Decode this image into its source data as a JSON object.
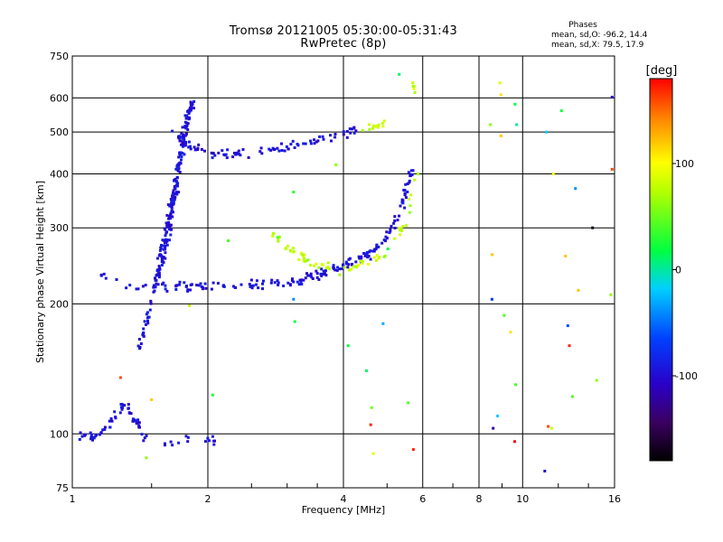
{
  "chart_data": {
    "type": "scatter",
    "title": "Tromsø 20121005 05:30:00-05:31:43",
    "subtitle": "RwPretec (8p)",
    "xlabel": "Frequency [MHz]",
    "ylabel": "Stationary phase Virtual Height [km]",
    "x_scale": "log",
    "y_scale": "log",
    "xlim": [
      1,
      16
    ],
    "ylim": [
      75,
      750
    ],
    "x_ticks": [
      1,
      2,
      4,
      6,
      8,
      10,
      16
    ],
    "x_tick_labels": [
      "1",
      "2",
      "4",
      "6",
      "8",
      "10",
      "16"
    ],
    "y_ticks": [
      75,
      100,
      200,
      300,
      400,
      500,
      600,
      750
    ],
    "y_tick_labels": [
      "75",
      "100",
      "200",
      "300",
      "400",
      "500",
      "600",
      "750"
    ],
    "grid": true,
    "phase_stats": {
      "title": "Phases",
      "o_line": "mean, sd,O: -96.2, 14.4",
      "x_line": "mean, sd,X:  79.5, 17.9"
    },
    "colorbar": {
      "label": "[deg]",
      "min": -180,
      "max": 180,
      "ticks": [
        100,
        0,
        -100
      ],
      "tick_labels": [
        "100",
        "0",
        "-100"
      ]
    },
    "series": [
      {
        "name": "O",
        "mean_phase": -96.2,
        "sd": 14.4,
        "traces": [
          {
            "x": [
              1.02,
              1.1,
              1.2,
              1.3,
              1.4,
              1.45
            ],
            "y": [
              100,
              98,
              103,
              118,
              106,
              96
            ],
            "count": 60
          },
          {
            "x": [
              1.42,
              1.48,
              1.55,
              1.62,
              1.68
            ],
            "y": [
              160,
              190,
              240,
              300,
              360
            ],
            "count": 90
          },
          {
            "x": [
              1.55,
              1.62,
              1.68,
              1.72,
              1.78,
              1.85
            ],
            "y": [
              230,
              280,
              340,
              420,
              500,
              600
            ],
            "count": 160
          },
          {
            "x": [
              1.65,
              1.75,
              1.85,
              2.0,
              2.2
            ],
            "y": [
              510,
              480,
              460,
              450,
              445
            ],
            "count": 40
          },
          {
            "x": [
              2.2,
              2.6,
              3.0,
              3.4,
              3.8,
              4.3
            ],
            "y": [
              445,
              448,
              462,
              476,
              490,
              505
            ],
            "count": 60
          },
          {
            "x": [
              1.3,
              1.6,
              2.0,
              2.5,
              3.0,
              3.5,
              4.0
            ],
            "y": [
              218,
              219,
              219,
              221,
              224,
              233,
              245
            ],
            "count": 110
          },
          {
            "x": [
              4.0,
              4.5,
              5.0,
              5.4,
              5.7
            ],
            "y": [
              246,
              258,
              285,
              340,
              420
            ],
            "count": 80
          },
          {
            "x": [
              1.6,
              1.8,
              2.0,
              2.1
            ],
            "y": [
              95,
              97,
              98,
              96
            ],
            "count": 15
          },
          {
            "x": [
              1.15,
              1.19,
              1.25
            ],
            "y": [
              232,
              230,
              226
            ],
            "count": 6
          }
        ]
      },
      {
        "name": "X",
        "mean_phase": 79.5,
        "sd": 17.9,
        "traces": [
          {
            "x": [
              2.75,
              3.0,
              3.4,
              3.9,
              4.4,
              5.0,
              5.5,
              5.85
            ],
            "y": [
              293,
              270,
              250,
              240,
              245,
              262,
              310,
              410
            ],
            "count": 70
          },
          {
            "x": [
              4.4,
              4.7,
              5.0
            ],
            "y": [
              505,
              515,
              525
            ],
            "count": 12
          },
          {
            "x": [
              5.65,
              5.75
            ],
            "y": [
              618,
              635
            ],
            "count": 5
          }
        ]
      }
    ],
    "scatter_outliers": [
      {
        "x": 1.28,
        "y": 135,
        "phase": 160
      },
      {
        "x": 1.46,
        "y": 88,
        "phase": 60
      },
      {
        "x": 1.5,
        "y": 120,
        "phase": 120
      },
      {
        "x": 1.82,
        "y": 198,
        "phase": 80
      },
      {
        "x": 2.05,
        "y": 123,
        "phase": 20
      },
      {
        "x": 2.22,
        "y": 280,
        "phase": 40
      },
      {
        "x": 2.86,
        "y": 285,
        "phase": 40
      },
      {
        "x": 3.1,
        "y": 205,
        "phase": -40
      },
      {
        "x": 3.1,
        "y": 363,
        "phase": 30
      },
      {
        "x": 3.12,
        "y": 182,
        "phase": 20
      },
      {
        "x": 3.85,
        "y": 420,
        "phase": 60
      },
      {
        "x": 4.1,
        "y": 160,
        "phase": 20
      },
      {
        "x": 4.5,
        "y": 140,
        "phase": 10
      },
      {
        "x": 4.6,
        "y": 105,
        "phase": 170
      },
      {
        "x": 4.62,
        "y": 115,
        "phase": 50
      },
      {
        "x": 4.66,
        "y": 90,
        "phase": 90
      },
      {
        "x": 4.9,
        "y": 180,
        "phase": -30
      },
      {
        "x": 5.02,
        "y": 268,
        "phase": 20
      },
      {
        "x": 5.32,
        "y": 680,
        "phase": 10
      },
      {
        "x": 5.57,
        "y": 118,
        "phase": 40
      },
      {
        "x": 5.72,
        "y": 92,
        "phase": 170
      },
      {
        "x": 8.48,
        "y": 520,
        "phase": 60
      },
      {
        "x": 8.56,
        "y": 260,
        "phase": 120
      },
      {
        "x": 8.55,
        "y": 205,
        "phase": -70
      },
      {
        "x": 8.6,
        "y": 103,
        "phase": -120
      },
      {
        "x": 8.8,
        "y": 110,
        "phase": -20
      },
      {
        "x": 8.9,
        "y": 650,
        "phase": 90
      },
      {
        "x": 8.95,
        "y": 490,
        "phase": 120
      },
      {
        "x": 8.95,
        "y": 610,
        "phase": 110
      },
      {
        "x": 9.1,
        "y": 188,
        "phase": 40
      },
      {
        "x": 9.4,
        "y": 172,
        "phase": 110
      },
      {
        "x": 9.65,
        "y": 130,
        "phase": 40
      },
      {
        "x": 9.6,
        "y": 96,
        "phase": 180
      },
      {
        "x": 9.62,
        "y": 580,
        "phase": 20
      },
      {
        "x": 9.7,
        "y": 520,
        "phase": 0
      },
      {
        "x": 11.3,
        "y": 500,
        "phase": -20
      },
      {
        "x": 11.4,
        "y": 104,
        "phase": 160
      },
      {
        "x": 11.2,
        "y": 82,
        "phase": -100
      },
      {
        "x": 11.6,
        "y": 103,
        "phase": 80
      },
      {
        "x": 11.7,
        "y": 400,
        "phase": 100
      },
      {
        "x": 12.2,
        "y": 560,
        "phase": 20
      },
      {
        "x": 12.45,
        "y": 258,
        "phase": 120
      },
      {
        "x": 12.6,
        "y": 178,
        "phase": -60
      },
      {
        "x": 12.7,
        "y": 160,
        "phase": 170
      },
      {
        "x": 12.9,
        "y": 122,
        "phase": 40
      },
      {
        "x": 13.1,
        "y": 370,
        "phase": -40
      },
      {
        "x": 13.3,
        "y": 215,
        "phase": 120
      },
      {
        "x": 14.3,
        "y": 300,
        "phase": -170
      },
      {
        "x": 14.6,
        "y": 133,
        "phase": 60
      },
      {
        "x": 15.7,
        "y": 210,
        "phase": 60
      },
      {
        "x": 15.8,
        "y": 602,
        "phase": -110
      },
      {
        "x": 15.8,
        "y": 410,
        "phase": 160
      }
    ]
  }
}
